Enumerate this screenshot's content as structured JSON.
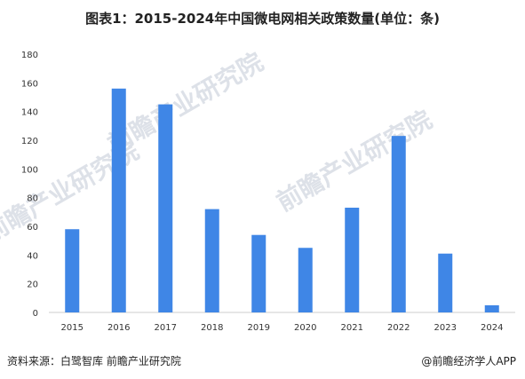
{
  "title": "图表1：2015-2024年中国微电网相关政策数量(单位：条)",
  "source": "资料来源：白鹭智库 前瞻产业研究院",
  "credit": "@前瞻经济学人APP",
  "watermark": "前瞻产业研究院",
  "chart_data": {
    "type": "bar",
    "title": "图表1：2015-2024年中国微电网相关政策数量(单位：条)",
    "categories": [
      "2015",
      "2016",
      "2017",
      "2018",
      "2019",
      "2020",
      "2021",
      "2022",
      "2023",
      "2024"
    ],
    "values": [
      58,
      156,
      145,
      72,
      54,
      45,
      73,
      123,
      41,
      5
    ],
    "ylim": [
      0,
      180
    ],
    "yticks": [
      0,
      20,
      40,
      60,
      80,
      100,
      120,
      140,
      160,
      180
    ],
    "grid": false,
    "bar_color": "#3f86e6",
    "xlabel": "",
    "ylabel": ""
  }
}
